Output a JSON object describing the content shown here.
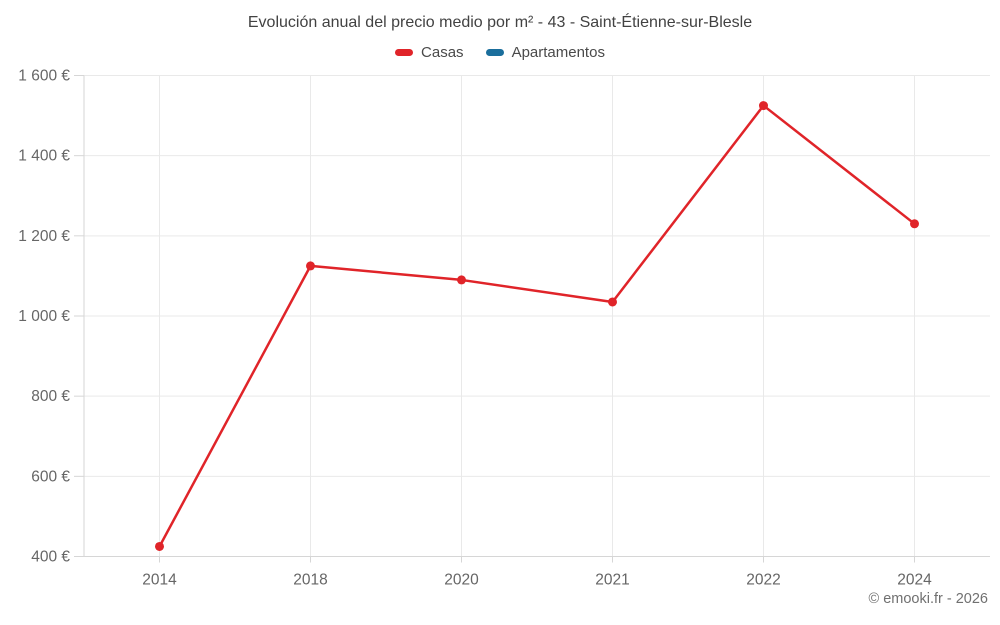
{
  "header": {
    "title": "Evolución anual del precio medio por m² - 43 - Saint-Étienne-sur-Blesle"
  },
  "legend": {
    "items": [
      {
        "label": "Casas",
        "color": "#e02429"
      },
      {
        "label": "Apartamentos",
        "color": "#1a6e9c"
      }
    ]
  },
  "footer": {
    "credit": "© emooki.fr - 2026"
  },
  "colors": {
    "grid": "#e9e9e9",
    "axis": "#d6d6d6",
    "tick": "#d6d6d6",
    "title_text": "#424242",
    "axis_text": "#666666",
    "footer_text": "#707070"
  },
  "chart_data": {
    "type": "line",
    "title": "Evolución anual del precio medio por m² - 43 - Saint-Étienne-sur-Blesle",
    "categories": [
      "2014",
      "2018",
      "2020",
      "2021",
      "2022",
      "2024"
    ],
    "series": [
      {
        "name": "Casas",
        "color": "#e02429",
        "values": [
          425,
          1125,
          1090,
          1035,
          1525,
          1230
        ]
      },
      {
        "name": "Apartamentos",
        "color": "#1a6e9c",
        "values": [
          null,
          null,
          null,
          null,
          null,
          null
        ]
      }
    ],
    "xlabel": "",
    "ylabel": "",
    "ylim": [
      400,
      1600
    ],
    "ytick_step": 200,
    "ytick_labels": [
      "400 €",
      "600 €",
      "800 €",
      "1 000 €",
      "1 200 €",
      "1 400 €",
      "1 600 €"
    ],
    "grid": true,
    "legend_position": "top",
    "marker": "circle"
  }
}
